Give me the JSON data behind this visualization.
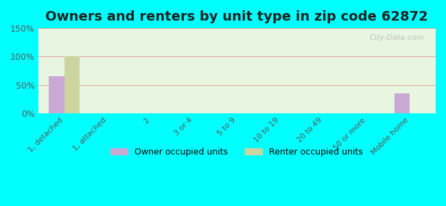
{
  "title": "Owners and renters by unit type in zip code 62872",
  "categories": [
    "1, detached",
    "1, attached",
    "2",
    "3 or 4",
    "5 to 9",
    "10 to 19",
    "20 to 49",
    "50 or more",
    "Mobile home"
  ],
  "owner_values": [
    65,
    0,
    0,
    0,
    0,
    0,
    0,
    0,
    35
  ],
  "renter_values": [
    100,
    0,
    0,
    0,
    0,
    0,
    0,
    0,
    0
  ],
  "owner_color": "#c9a8d4",
  "renter_color": "#ccd4a0",
  "background_plot": "#e8f5e0",
  "background_fig": "#00ffff",
  "ylim": [
    0,
    150
  ],
  "yticks": [
    0,
    50,
    100,
    150
  ],
  "ytick_labels": [
    "0%",
    "50%",
    "100%",
    "150%"
  ],
  "bar_width": 0.35,
  "legend_owner": "Owner occupied units",
  "legend_renter": "Renter occupied units",
  "watermark": "City-Data.com",
  "grid_color": "#e8a0a0",
  "title_fontsize": 14
}
